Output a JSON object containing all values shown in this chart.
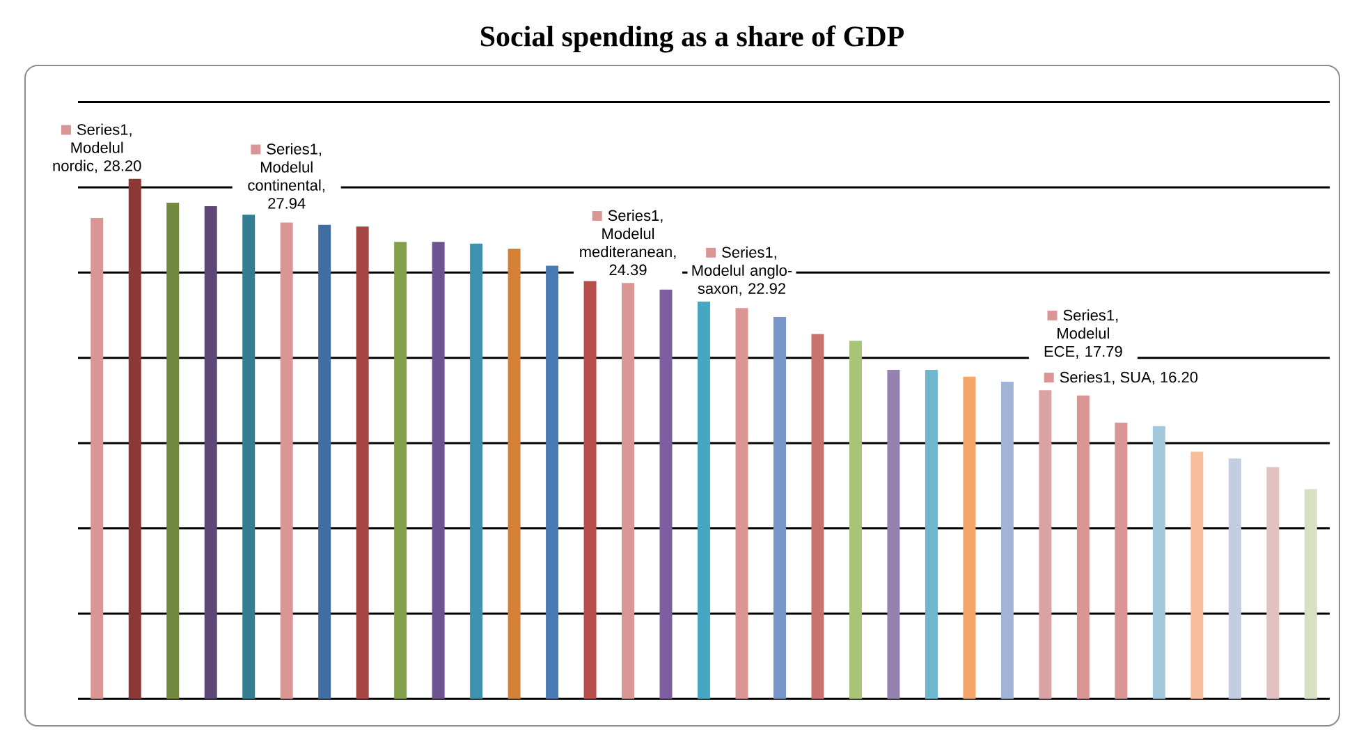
{
  "chart_data": {
    "type": "bar",
    "title": "Social spending as a share of GDP",
    "categories": [
      null,
      null,
      null,
      null,
      null,
      null,
      null,
      null,
      null,
      null,
      null,
      null,
      null,
      null,
      null,
      null,
      null,
      null,
      null,
      null,
      null,
      null,
      null,
      null,
      null,
      null,
      null,
      null,
      null,
      null,
      null,
      null,
      null
    ],
    "values": [
      28.2,
      30.5,
      29.1,
      28.9,
      28.4,
      27.94,
      27.8,
      27.7,
      26.8,
      26.8,
      26.7,
      26.4,
      25.4,
      24.5,
      24.39,
      24.0,
      23.3,
      22.92,
      22.4,
      21.4,
      21.0,
      19.3,
      19.3,
      18.9,
      18.6,
      18.1,
      17.79,
      16.2,
      16.0,
      14.5,
      14.1,
      13.6,
      12.3
    ],
    "colors": [
      "#d99694",
      "#8c3836",
      "#71893f",
      "#5c4776",
      "#357d91",
      "#d99694",
      "#426da1",
      "#a64644",
      "#83a14a",
      "#6b548f",
      "#3e92ad",
      "#d48036",
      "#4a7ab5",
      "#b84e4b",
      "#d99694",
      "#7b5f9e",
      "#46a7c2",
      "#d99694",
      "#7896c9",
      "#c97371",
      "#a9c474",
      "#9682b0",
      "#6fb7cf",
      "#f7a66b",
      "#a1b3d6",
      "#d9a3a3",
      "#d99694",
      "#d99694",
      "#a1c9db",
      "#f9be9b",
      "#c2cde2",
      "#e2c1c3",
      "#d7e0c3"
    ],
    "value_labels": [
      "Series1, Modelul nordic, 28.20",
      null,
      null,
      null,
      null,
      "Series1, Modelul continental, 27.94",
      null,
      null,
      null,
      null,
      null,
      null,
      null,
      null,
      "Series1, Modelul mediteranean, 24.39",
      null,
      null,
      "Series1, Modelul anglo-saxon, 22.92",
      null,
      null,
      null,
      null,
      null,
      null,
      null,
      null,
      "Series1, Modelul ECE, 17.79",
      "Series1, SUA, 16.20",
      null,
      null,
      null,
      null,
      null
    ],
    "ylim": [
      0,
      35
    ],
    "yticks": [
      {
        "value": 0,
        "label": null
      },
      {
        "value": 5,
        "label": null
      },
      {
        "value": 10,
        "label": null
      },
      {
        "value": 15,
        "label": null
      },
      {
        "value": 20,
        "label": null
      },
      {
        "value": 25,
        "label": null
      },
      {
        "value": 30,
        "label": null
      },
      {
        "value": 35,
        "label": null
      }
    ],
    "grid": "y"
  }
}
